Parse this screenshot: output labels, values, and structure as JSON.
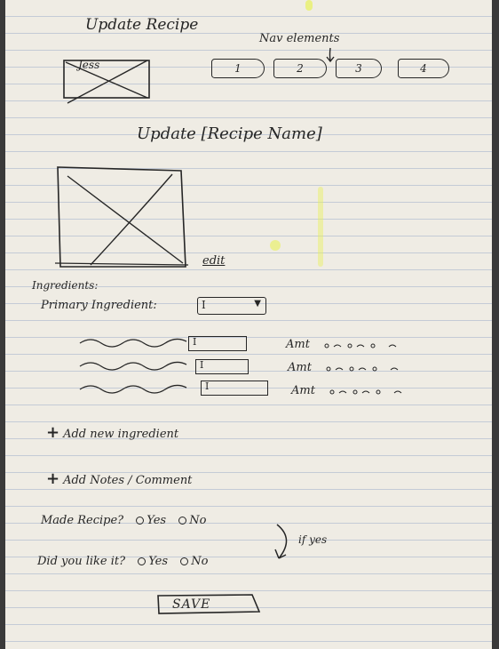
{
  "title": "Update Recipe",
  "logo": {
    "text": "Jess"
  },
  "nav": {
    "annotation": "Nav elements",
    "tabs": [
      {
        "label": "1"
      },
      {
        "label": "2"
      },
      {
        "label": "3"
      },
      {
        "label": "4"
      }
    ]
  },
  "heading": "Update [Recipe Name]",
  "image": {
    "edit_label": "edit"
  },
  "ingredients": {
    "section_label": "Ingredients:",
    "primary_label": "Primary Ingredient:",
    "rows": [
      {
        "amount_label": "Amt"
      },
      {
        "amount_label": "Amt"
      },
      {
        "amount_label": "Amt"
      }
    ],
    "add_label": "Add new ingredient"
  },
  "notes": {
    "add_label": "Add Notes / Comment"
  },
  "made_recipe": {
    "question": "Made Recipe?",
    "options": [
      "Yes",
      "No"
    ],
    "annotation": "if yes"
  },
  "liked_it": {
    "question": "Did you like it?",
    "options": [
      "Yes",
      "No"
    ]
  },
  "save": {
    "label": "SAVE"
  },
  "colors": {
    "ink": "#262626",
    "paper": "#efece4",
    "rule": "#c4cbd6"
  }
}
